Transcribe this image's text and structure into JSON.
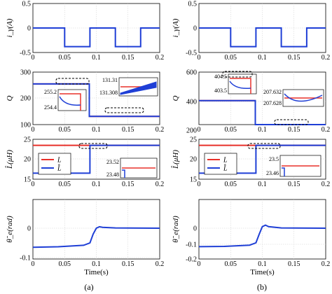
{
  "chart_data": [
    {
      "panel": "a",
      "row": 1,
      "type": "line",
      "ylabel": "i_γ(A)",
      "xlim": [
        0,
        0.2
      ],
      "ylim": [
        -0.5,
        0.5
      ],
      "xticks": [
        "0",
        "0.05",
        "0.1",
        "0.15",
        "0.2"
      ],
      "yticks": [
        "0.5",
        "0",
        "-0.5"
      ],
      "series": [
        {
          "color": "#1f3fd6",
          "x": [
            0,
            0.05,
            0.05,
            0.09,
            0.09,
            0.13,
            0.13,
            0.17,
            0.17,
            0.2
          ],
          "y": [
            0,
            0,
            -0.38,
            -0.38,
            0,
            0,
            -0.38,
            -0.38,
            0,
            0
          ]
        }
      ]
    },
    {
      "panel": "b",
      "row": 1,
      "type": "line",
      "ylabel": "i_γ(A)",
      "xlim": [
        0,
        0.2
      ],
      "ylim": [
        -0.5,
        0.5
      ],
      "xticks": [
        "0",
        "0.05",
        "0.1",
        "0.15",
        "0.2"
      ],
      "yticks": [
        "0.5",
        "0",
        "-0.5"
      ],
      "series": [
        {
          "color": "#1f3fd6",
          "x": [
            0,
            0.05,
            0.05,
            0.09,
            0.09,
            0.13,
            0.13,
            0.17,
            0.17,
            0.2
          ],
          "y": [
            0,
            0,
            -0.38,
            -0.38,
            0,
            0,
            -0.38,
            -0.38,
            0,
            0
          ]
        }
      ]
    },
    {
      "panel": "a",
      "row": 2,
      "type": "line",
      "ylabel": "Q",
      "xlim": [
        0,
        0.2
      ],
      "ylim": [
        100,
        300
      ],
      "xticks": [
        "0",
        "0.05",
        "0.1",
        "0.15",
        "0.2"
      ],
      "yticks": [
        "300",
        "200",
        "100"
      ],
      "series": [
        {
          "color": "#e8302a",
          "x": [
            0,
            0.089,
            0.089,
            0.2
          ],
          "y": [
            255,
            255,
            131.3,
            131.3
          ]
        },
        {
          "color": "#1f3fd6",
          "x": [
            0,
            0.089,
            0.089,
            0.2
          ],
          "y": [
            254.8,
            254.8,
            131.3,
            131.3
          ]
        }
      ],
      "insets": [
        {
          "yticks": [
            "255.2",
            "254.4"
          ]
        },
        {
          "yticks": [
            "131.31",
            "131.308"
          ]
        }
      ]
    },
    {
      "panel": "b",
      "row": 2,
      "type": "line",
      "ylabel": "Q",
      "xlim": [
        0,
        0.2
      ],
      "ylim": [
        100,
        600
      ],
      "xticks": [
        "0",
        "0.05",
        "0.1",
        "0.15",
        "0.2"
      ],
      "yticks": [
        "600",
        "400",
        "200"
      ],
      "series": [
        {
          "color": "#e8302a",
          "x": [
            0,
            0.089,
            0.089,
            0.2
          ],
          "y": [
            404,
            404,
            207.6,
            207.6
          ]
        },
        {
          "color": "#1f3fd6",
          "x": [
            0,
            0.089,
            0.089,
            0.2
          ],
          "y": [
            403.8,
            403.8,
            207.6,
            207.6
          ]
        }
      ],
      "insets": [
        {
          "yticks": [
            "404.5",
            "403.5"
          ]
        },
        {
          "yticks": [
            "207.632",
            "207.628"
          ]
        }
      ]
    },
    {
      "panel": "a",
      "row": 3,
      "type": "line",
      "ylabel": "L̂(μH)",
      "xlim": [
        0,
        0.2
      ],
      "ylim": [
        15,
        25
      ],
      "xticks": [
        "0",
        "0.05",
        "0.1",
        "0.15",
        "0.2"
      ],
      "yticks": [
        "25",
        "20",
        "15"
      ],
      "legend": [
        "L",
        "L̂"
      ],
      "series": [
        {
          "name": "L",
          "color": "#e8302a",
          "x": [
            0,
            0.2
          ],
          "y": [
            23.5,
            23.5
          ]
        },
        {
          "name": "L̂",
          "color": "#1f3fd6",
          "x": [
            0,
            0.09,
            0.09,
            0.2
          ],
          "y": [
            16.5,
            16.5,
            23.5,
            23.5
          ]
        }
      ],
      "insets": [
        {
          "yticks": [
            "23.52",
            "23.48"
          ]
        }
      ]
    },
    {
      "panel": "b",
      "row": 3,
      "type": "line",
      "ylabel": "L̂(μH)",
      "xlim": [
        0,
        0.2
      ],
      "ylim": [
        15,
        25
      ],
      "xticks": [
        "0",
        "0.05",
        "0.1",
        "0.15",
        "0.2"
      ],
      "yticks": [
        "25",
        "20",
        "15"
      ],
      "legend": [
        "L",
        "L̂"
      ],
      "series": [
        {
          "name": "L",
          "color": "#e8302a",
          "x": [
            0,
            0.2
          ],
          "y": [
            23.5,
            23.5
          ]
        },
        {
          "name": "L̂",
          "color": "#1f3fd6",
          "x": [
            0,
            0.09,
            0.09,
            0.2
          ],
          "y": [
            16.5,
            16.5,
            23.5,
            23.5
          ]
        }
      ],
      "insets": [
        {
          "yticks": [
            "23.5",
            "23.46"
          ]
        }
      ]
    },
    {
      "panel": "a",
      "row": 4,
      "type": "line",
      "ylabel": "θ̃_e(rad)",
      "xlabel": "Time(s)",
      "xlim": [
        0,
        0.2
      ],
      "ylim": [
        -0.1,
        0.1
      ],
      "xticks": [
        "0",
        "0.05",
        "0.1",
        "0.15",
        "0.2"
      ],
      "yticks": [
        "0",
        "-0.1"
      ],
      "series": [
        {
          "color": "#1f3fd6",
          "x": [
            0,
            0.04,
            0.08,
            0.09,
            0.095,
            0.1,
            0.105,
            0.11,
            0.13,
            0.2
          ],
          "y": [
            -0.065,
            -0.063,
            -0.058,
            -0.05,
            -0.02,
            0.0,
            0.005,
            0.003,
            0.001,
            0.0
          ]
        }
      ]
    },
    {
      "panel": "b",
      "row": 4,
      "type": "line",
      "ylabel": "θ̃_e(rad)",
      "xlabel": "Time(s)",
      "xlim": [
        0,
        0.2
      ],
      "ylim": [
        -0.2,
        0.1
      ],
      "xticks": [
        "0",
        "0.05",
        "0.1",
        "0.15",
        "0.2"
      ],
      "yticks": [
        "0",
        "-0.1",
        "-0.2"
      ],
      "series": [
        {
          "color": "#1f3fd6",
          "x": [
            0,
            0.04,
            0.08,
            0.09,
            0.095,
            0.1,
            0.105,
            0.11,
            0.13,
            0.2
          ],
          "y": [
            -0.12,
            -0.118,
            -0.11,
            -0.095,
            -0.04,
            0.01,
            0.02,
            0.01,
            0.002,
            0.0
          ]
        }
      ]
    }
  ],
  "captions": {
    "a": "(a)",
    "b": "(b)"
  }
}
